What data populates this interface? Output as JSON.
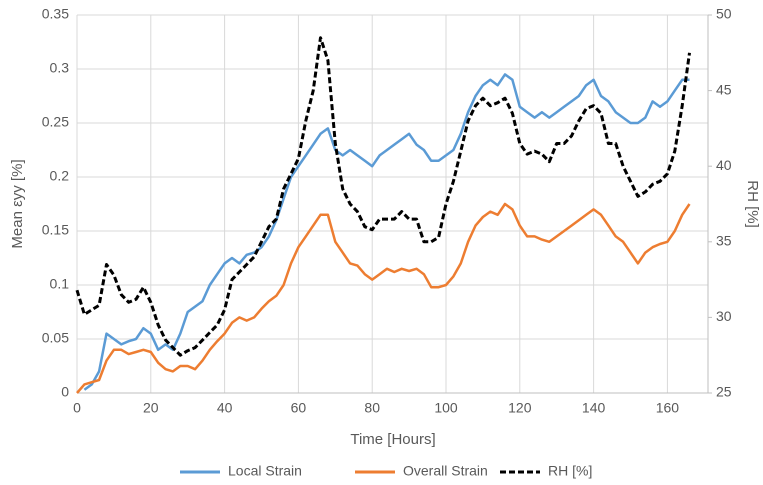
{
  "chart_data": {
    "type": "line",
    "xlabel": "Time [Hours]",
    "ylabel": "Mean εyy [%]",
    "y2label": "RH [%]",
    "x": [
      0,
      2,
      4,
      6,
      8,
      10,
      12,
      14,
      16,
      18,
      20,
      22,
      24,
      26,
      28,
      30,
      32,
      34,
      36,
      38,
      40,
      42,
      44,
      46,
      48,
      50,
      52,
      54,
      56,
      58,
      60,
      62,
      64,
      66,
      68,
      70,
      72,
      74,
      76,
      78,
      80,
      82,
      84,
      86,
      88,
      90,
      92,
      94,
      96,
      98,
      100,
      102,
      104,
      106,
      108,
      110,
      112,
      114,
      116,
      118,
      120,
      122,
      124,
      126,
      128,
      130,
      132,
      134,
      136,
      138,
      140,
      142,
      144,
      146,
      148,
      150,
      152,
      154,
      156,
      158,
      160,
      162,
      164,
      166
    ],
    "series": [
      {
        "name": "Local Strain",
        "color": "#5b9bd5",
        "dash": false,
        "values": [
          null,
          0.003,
          0.008,
          0.02,
          0.055,
          0.05,
          0.045,
          0.048,
          0.05,
          0.06,
          0.055,
          0.04,
          0.045,
          0.04,
          0.055,
          0.075,
          0.08,
          0.085,
          0.1,
          0.11,
          0.12,
          0.125,
          0.12,
          0.128,
          0.13,
          0.135,
          0.145,
          0.16,
          0.18,
          0.2,
          0.21,
          0.22,
          0.23,
          0.24,
          0.245,
          0.225,
          0.22,
          0.225,
          0.22,
          0.215,
          0.21,
          0.22,
          0.225,
          0.23,
          0.235,
          0.24,
          0.23,
          0.225,
          0.215,
          0.215,
          0.22,
          0.225,
          0.24,
          0.26,
          0.275,
          0.285,
          0.29,
          0.285,
          0.295,
          0.29,
          0.265,
          0.26,
          0.255,
          0.26,
          0.255,
          0.26,
          0.265,
          0.27,
          0.275,
          0.285,
          0.29,
          0.275,
          0.27,
          0.26,
          0.255,
          0.25,
          0.25,
          0.255,
          0.27,
          0.265,
          0.27,
          0.28,
          0.29,
          0.29
        ]
      },
      {
        "name": "Overall Strain",
        "color": "#ed7d31",
        "dash": false,
        "values": [
          0,
          0.008,
          0.01,
          0.012,
          0.03,
          0.04,
          0.04,
          0.036,
          0.038,
          0.04,
          0.038,
          0.028,
          0.022,
          0.02,
          0.025,
          0.025,
          0.022,
          0.03,
          0.04,
          0.048,
          0.055,
          0.065,
          0.07,
          0.067,
          0.07,
          0.078,
          0.085,
          0.09,
          0.1,
          0.12,
          0.135,
          0.145,
          0.155,
          0.165,
          0.165,
          0.14,
          0.13,
          0.12,
          0.118,
          0.11,
          0.105,
          0.11,
          0.115,
          0.112,
          0.115,
          0.113,
          0.115,
          0.11,
          0.098,
          0.098,
          0.1,
          0.108,
          0.12,
          0.14,
          0.155,
          0.163,
          0.168,
          0.165,
          0.175,
          0.17,
          0.155,
          0.145,
          0.145,
          0.142,
          0.14,
          0.145,
          0.15,
          0.155,
          0.16,
          0.165,
          0.17,
          0.165,
          0.155,
          0.145,
          0.14,
          0.13,
          0.12,
          0.13,
          0.135,
          0.138,
          0.14,
          0.15,
          0.165,
          0.175
        ]
      },
      {
        "name": "RH [%]",
        "color": "#000000",
        "dash": true,
        "axis": "y2",
        "values": [
          31.8,
          30.2,
          30.5,
          30.8,
          33.5,
          32.8,
          31.5,
          31,
          31.2,
          32,
          31,
          29.5,
          28.5,
          28,
          27.5,
          27.8,
          28,
          28.5,
          29,
          29.5,
          30.5,
          32.5,
          33,
          33.5,
          34,
          35,
          36,
          36.5,
          38.5,
          39.5,
          40.5,
          43,
          45,
          48.5,
          47,
          41.5,
          38.5,
          37.5,
          37,
          36,
          35.8,
          36.5,
          36.5,
          36.5,
          37,
          36.5,
          36.5,
          35,
          35,
          35.3,
          37.5,
          39,
          41,
          43,
          44,
          44.5,
          44,
          44.2,
          44.5,
          43.5,
          41.5,
          40.8,
          41,
          40.8,
          40.3,
          41.5,
          41.5,
          42,
          43,
          43.8,
          44,
          43.5,
          41.5,
          41.5,
          40,
          39,
          38,
          38.3,
          38.8,
          39,
          39.5,
          41,
          44,
          47.5
        ]
      }
    ],
    "xlim": [
      0,
      171
    ],
    "xticks": [
      0,
      20,
      40,
      60,
      80,
      100,
      120,
      140,
      160
    ],
    "ylim": [
      0,
      0.35
    ],
    "yticks": [
      0,
      0.05,
      0.1,
      0.15,
      0.2,
      0.25,
      0.3,
      0.35
    ],
    "y2lim": [
      25,
      50
    ],
    "y2ticks": [
      25,
      30,
      35,
      40,
      45,
      50
    ],
    "grid": true,
    "legend": "bottom"
  }
}
